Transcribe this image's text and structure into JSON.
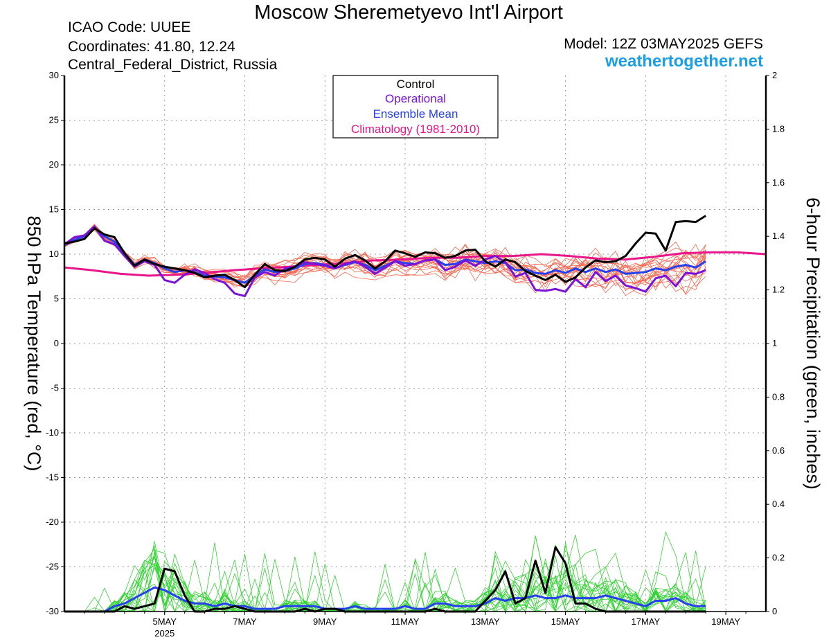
{
  "header": {
    "title": "Moscow Sheremetyevo Int'l Airport",
    "icao": "ICAO Code: UUEE",
    "coordinates": "Coordinates: 41.80, 12.24",
    "region": "Central_Federal_District, Russia",
    "model": "Model: 12Z 03MAY2025 GEFS",
    "site": "weathertogether.net"
  },
  "chart_data": {
    "type": "line",
    "ylabel_left": "850 hPa Temperature (red, °C)",
    "ylabel_right": "6-hour Precipitation (green, inches)",
    "ylim_left": [
      -30,
      30
    ],
    "ylim_right": [
      0,
      2
    ],
    "yticks_left": [
      "30",
      "25",
      "20",
      "15",
      "10",
      "5",
      "0",
      "-5",
      "-10",
      "-15",
      "-20",
      "-25",
      "-30"
    ],
    "yticks_right": [
      "2",
      "1.8",
      "1.6",
      "1.4",
      "1.2",
      "1",
      "0.8",
      "0.6",
      "0.4",
      "0.2",
      "0"
    ],
    "xlim_hours": [
      -24,
      396
    ],
    "x_ticks": [
      {
        "label": "5MAY",
        "hour": 36,
        "sub": "2025"
      },
      {
        "label": "7MAY",
        "hour": 84
      },
      {
        "label": "9MAY",
        "hour": 132
      },
      {
        "label": "11MAY",
        "hour": 180
      },
      {
        "label": "13MAY",
        "hour": 228
      },
      {
        "label": "15MAY",
        "hour": 276
      },
      {
        "label": "17MAY",
        "hour": 324
      },
      {
        "label": "19MAY",
        "hour": 372
      }
    ],
    "grid": true,
    "legend_position": "top-center",
    "legend": [
      "Control",
      "Operational",
      "Ensemble Mean",
      "Climatology (1981-2010)"
    ],
    "colors": {
      "control": "#000000",
      "operational": "#7b12d8",
      "mean": "#2740ee",
      "climatology": "#e8168a",
      "members_temp": "#f4664f",
      "members_precip": "#33d233"
    },
    "series_x_start_hour": -24,
    "series_x_step_hours": 6,
    "temperature": {
      "control": [
        11.2,
        11.4,
        11.7,
        12.9,
        12.2,
        11.9,
        10.1,
        8.7,
        9.4,
        8.9,
        8.6,
        8.4,
        8.2,
        7.9,
        7.4,
        7.6,
        7.7,
        7.1,
        6.3,
        7.7,
        8.9,
        8.2,
        8.1,
        8.6,
        9.4,
        9.6,
        9.4,
        8.6,
        9.5,
        9.9,
        9.3,
        8.4,
        9.2,
        10.4,
        10.1,
        9.7,
        10.2,
        10.1,
        9.6,
        9.8,
        10.4,
        10.5,
        9.2,
        8.6,
        9.4,
        9.1,
        8.1,
        7.6,
        7.1,
        7.7,
        6.9,
        7.4,
        8.5,
        9.3,
        9.1,
        9.2,
        9.8,
        11.2,
        12.4,
        12.3,
        10.4,
        13.6,
        13.7,
        13.6,
        14.3
      ],
      "operational": [
        11.1,
        11.9,
        12.1,
        13.1,
        11.5,
        11.1,
        9.8,
        8.6,
        9.2,
        8.8,
        7.1,
        6.8,
        7.7,
        8.3,
        7.9,
        7.2,
        6.8,
        5.6,
        5.3,
        7.4,
        8.0,
        7.6,
        8.4,
        8.6,
        9.1,
        8.9,
        8.7,
        8.4,
        8.9,
        9.2,
        8.6,
        7.8,
        8.5,
        9.2,
        8.7,
        8.9,
        9.3,
        9.4,
        8.2,
        8.6,
        9.3,
        8.7,
        9.4,
        9.8,
        9.1,
        7.5,
        7.9,
        6.0,
        5.9,
        6.1,
        5.8,
        7.2,
        6.3,
        8.0,
        7.0,
        7.6,
        6.5,
        6.2,
        5.8,
        7.3,
        7.6,
        6.4,
        7.9,
        7.8,
        8.2
      ],
      "mean": [
        11.0,
        11.6,
        12.0,
        13.0,
        12.0,
        11.4,
        10.1,
        8.8,
        9.4,
        9.0,
        8.4,
        8.0,
        8.2,
        8.0,
        7.6,
        7.5,
        7.4,
        7.1,
        6.8,
        7.6,
        8.3,
        8.0,
        8.1,
        8.4,
        8.9,
        9.0,
        8.8,
        8.4,
        8.8,
        9.1,
        8.8,
        8.2,
        8.7,
        9.2,
        9.0,
        8.9,
        9.3,
        9.4,
        8.8,
        8.9,
        9.4,
        9.2,
        9.0,
        9.2,
        9.0,
        8.2,
        8.3,
        7.9,
        7.8,
        8.2,
        7.9,
        8.4,
        8.0,
        8.4,
        8.0,
        8.3,
        7.8,
        7.9,
        8.0,
        8.4,
        8.2,
        8.6,
        8.8,
        8.5,
        9.2
      ],
      "climatology": [
        8.5,
        8.2,
        7.8,
        7.6,
        7.7,
        7.9,
        8.2,
        8.4,
        8.6,
        8.8,
        9.0,
        9.3,
        9.4,
        9.6,
        9.6,
        9.8,
        9.8,
        10.0,
        9.8,
        9.5,
        9.4,
        9.7,
        10.1,
        10.2,
        10.2,
        10.0
      ]
    },
    "precipitation": {
      "control": [
        0,
        0,
        0,
        0,
        0,
        0,
        0.02,
        0.01,
        0.02,
        0.03,
        0.16,
        0.15,
        0.06,
        0,
        0,
        0.01,
        0.01,
        0.02,
        0.01,
        0,
        0,
        0,
        0,
        0,
        0.01,
        0,
        0.01,
        0.01,
        0,
        0,
        0,
        0,
        0,
        0,
        0,
        0,
        0,
        0.01,
        0,
        0,
        0,
        0,
        0.04,
        0.08,
        0.15,
        0.03,
        0.05,
        0.19,
        0.07,
        0.24,
        0.18,
        0.03,
        0.03,
        0.01,
        0,
        0,
        0,
        0,
        0,
        0,
        0,
        0,
        0,
        0,
        0
      ],
      "mean": [
        0,
        0,
        0,
        0,
        0,
        0.02,
        0.03,
        0.05,
        0.07,
        0.09,
        0.08,
        0.06,
        0.04,
        0.03,
        0.03,
        0.02,
        0.03,
        0.02,
        0.02,
        0.01,
        0.01,
        0.01,
        0.02,
        0.02,
        0.02,
        0.02,
        0.01,
        0.01,
        0.01,
        0.02,
        0.01,
        0.01,
        0.01,
        0.01,
        0.02,
        0.01,
        0.01,
        0.03,
        0.03,
        0.02,
        0.02,
        0.02,
        0.03,
        0.05,
        0.04,
        0.05,
        0.05,
        0.06,
        0.05,
        0.05,
        0.06,
        0.05,
        0.05,
        0.05,
        0.06,
        0.05,
        0.04,
        0.03,
        0.02,
        0.04,
        0.04,
        0.05,
        0.03,
        0.02,
        0.02
      ]
    }
  }
}
